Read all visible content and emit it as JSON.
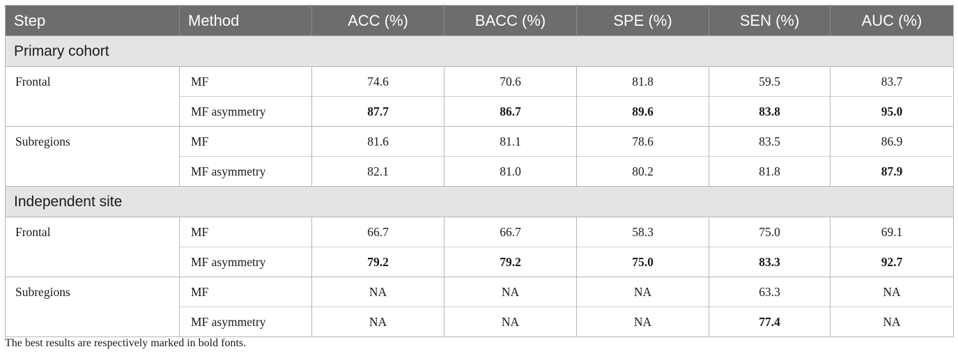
{
  "table": {
    "headers": [
      "Step",
      "Method",
      "ACC (%)",
      "BACC (%)",
      "SPE (%)",
      "SEN (%)",
      "AUC (%)"
    ],
    "sections": [
      {
        "title": "Primary cohort",
        "groups": [
          {
            "step": "Frontal",
            "rows": [
              {
                "method": "MF",
                "values": [
                  "74.6",
                  "70.6",
                  "81.8",
                  "59.5",
                  "83.7"
                ],
                "bold": [
                  false,
                  false,
                  false,
                  false,
                  false
                ]
              },
              {
                "method": "MF asymmetry",
                "values": [
                  "87.7",
                  "86.7",
                  "89.6",
                  "83.8",
                  "95.0"
                ],
                "bold": [
                  true,
                  true,
                  true,
                  true,
                  true
                ]
              }
            ]
          },
          {
            "step": "Subregions",
            "rows": [
              {
                "method": "MF",
                "values": [
                  "81.6",
                  "81.1",
                  "78.6",
                  "83.5",
                  "86.9"
                ],
                "bold": [
                  false,
                  false,
                  false,
                  false,
                  false
                ]
              },
              {
                "method": "MF asymmetry",
                "values": [
                  "82.1",
                  "81.0",
                  "80.2",
                  "81.8",
                  "87.9"
                ],
                "bold": [
                  false,
                  false,
                  false,
                  false,
                  true
                ]
              }
            ]
          }
        ]
      },
      {
        "title": "Independent site",
        "groups": [
          {
            "step": "Frontal",
            "rows": [
              {
                "method": "MF",
                "values": [
                  "66.7",
                  "66.7",
                  "58.3",
                  "75.0",
                  "69.1"
                ],
                "bold": [
                  false,
                  false,
                  false,
                  false,
                  false
                ]
              },
              {
                "method": "MF asymmetry",
                "values": [
                  "79.2",
                  "79.2",
                  "75.0",
                  "83.3",
                  "92.7"
                ],
                "bold": [
                  true,
                  true,
                  true,
                  true,
                  true
                ]
              }
            ]
          },
          {
            "step": "Subregions",
            "rows": [
              {
                "method": "MF",
                "values": [
                  "NA",
                  "NA",
                  "NA",
                  "63.3",
                  "NA"
                ],
                "bold": [
                  false,
                  false,
                  false,
                  false,
                  false
                ]
              },
              {
                "method": "MF asymmetry",
                "values": [
                  "NA",
                  "NA",
                  "NA",
                  "77.4",
                  "NA"
                ],
                "bold": [
                  false,
                  false,
                  false,
                  true,
                  false
                ]
              }
            ]
          }
        ]
      }
    ]
  },
  "footnote": "The best results are respectively marked in bold fonts."
}
